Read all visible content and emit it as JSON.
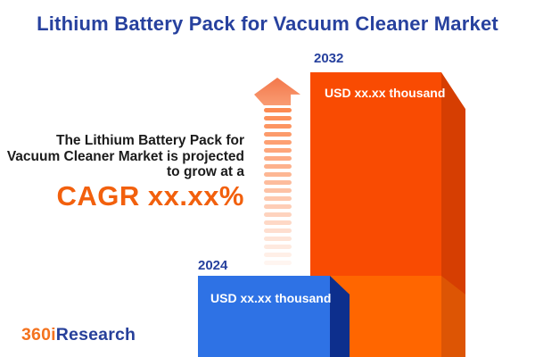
{
  "title": "Lithium Battery Pack for Vacuum Cleaner Market",
  "intro": {
    "lines": [
      "The Lithium Battery Pack for",
      "Vacuum Cleaner Market is projected",
      "to grow at a"
    ],
    "cagr_label": "CAGR xx.xx%"
  },
  "chart_data": {
    "type": "bar",
    "title": "Lithium Battery Pack for Vacuum Cleaner Market",
    "categories": [
      "2024",
      "2032"
    ],
    "values": [
      null,
      null
    ],
    "value_labels": [
      "USD xx.xx thousand",
      "USD xx.xx thousand"
    ],
    "unit": "USD thousand",
    "cagr": "xx.xx%",
    "bar_colors": [
      "#2E72E5",
      "#F94B02"
    ],
    "legend": "none",
    "axes_visible": false
  },
  "logo": {
    "prefix": "360i",
    "suffix": "Research"
  },
  "colors": {
    "title_navy": "#27419E",
    "text_dark": "#1B1B1B",
    "cagr_orange": "#F2600D",
    "arrow_salmon": "#F6875B",
    "bar_2032_front": "#F94B02",
    "bar_2032_side": "#D63E02",
    "bar_2032_base_front": "#FF6600",
    "bar_2032_base_side": "#DD5504",
    "bar_2024_front": "#2E72E5",
    "bar_2024_side": "#0D2F8D",
    "value_text": "#FFFFFF",
    "logo_orange": "#F4731F",
    "logo_navy": "#27409A"
  }
}
